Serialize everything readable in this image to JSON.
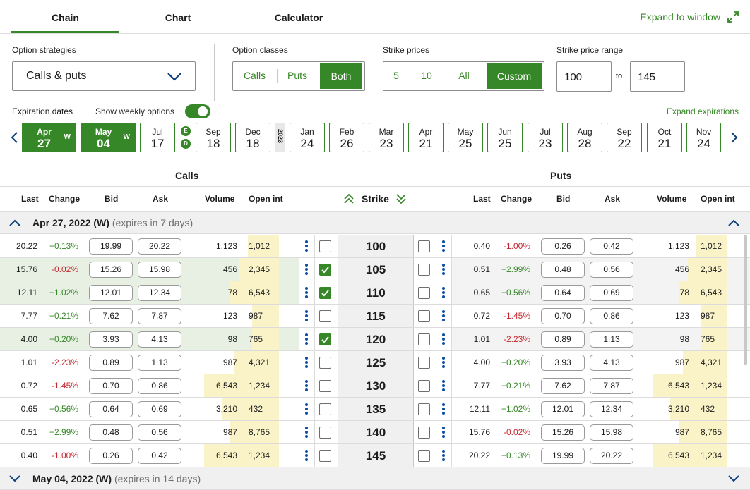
{
  "tabs": [
    "Chain",
    "Chart",
    "Calculator"
  ],
  "expand_window": "Expand to window",
  "option_strategies": {
    "label": "Option strategies",
    "value": "Calls & puts"
  },
  "option_classes": {
    "label": "Option classes",
    "options": [
      "Calls",
      "Puts",
      "Both"
    ],
    "selected": "Both"
  },
  "strike_prices": {
    "label": "Strike prices",
    "options": [
      "5",
      "10",
      "All",
      "Custom"
    ],
    "selected": "Custom"
  },
  "strike_range": {
    "label": "Strike price range",
    "from": "100",
    "to_label": "to",
    "to": "145"
  },
  "expiration_dates_label": "Expiration dates",
  "weekly": {
    "label": "Show weekly options",
    "on": true
  },
  "expand_expirations": "Expand expirations",
  "year_tag": "2023",
  "badges": [
    "E",
    "D"
  ],
  "dates": [
    {
      "m": "Apr",
      "d": "27",
      "w": "W",
      "selected": true
    },
    {
      "m": "May",
      "d": "04",
      "w": "W",
      "selected": true
    },
    {
      "m": "Jul",
      "d": "17"
    },
    {
      "m": "Sep",
      "d": "18"
    },
    {
      "m": "Dec",
      "d": "18"
    },
    {
      "m": "Jan",
      "d": "24"
    },
    {
      "m": "Feb",
      "d": "26"
    },
    {
      "m": "Mar",
      "d": "23"
    },
    {
      "m": "Apr",
      "d": "21"
    },
    {
      "m": "May",
      "d": "25"
    },
    {
      "m": "Jun",
      "d": "25"
    },
    {
      "m": "Jul",
      "d": "23"
    },
    {
      "m": "Aug",
      "d": "28"
    },
    {
      "m": "Sep",
      "d": "22"
    },
    {
      "m": "Oct",
      "d": "21"
    },
    {
      "m": "Nov",
      "d": "24"
    }
  ],
  "groups": {
    "calls": "Calls",
    "puts": "Puts"
  },
  "headers": {
    "last": "Last",
    "change": "Change",
    "bid": "Bid",
    "ask": "Ask",
    "volume": "Volume",
    "open_int": "Open int",
    "strike": "Strike"
  },
  "sections": [
    {
      "title": "Apr 27, 2022 (W)",
      "sub": "(expires in 7 days)",
      "expanded": true
    },
    {
      "title": "May 04, 2022 (W)",
      "sub": "(expires in 14 days)",
      "expanded": false
    }
  ],
  "rows": [
    {
      "strike": "100",
      "itm": false,
      "checked": false,
      "volfill": 0.35,
      "call": {
        "last": "20.22",
        "change": "+0.13%",
        "bid": "19.99",
        "ask": "20.22",
        "volume": "1,123",
        "oi": "1,012"
      },
      "put": {
        "last": "0.40",
        "change": "-1.00%",
        "bid": "0.26",
        "ask": "0.42",
        "volume": "1,123",
        "oi": "1,012"
      }
    },
    {
      "strike": "105",
      "itm": true,
      "checked": true,
      "volfill": 0.45,
      "call": {
        "last": "15.76",
        "change": "-0.02%",
        "bid": "15.26",
        "ask": "15.98",
        "volume": "456",
        "oi": "2,345"
      },
      "put": {
        "last": "0.51",
        "change": "+2.99%",
        "bid": "0.48",
        "ask": "0.56",
        "volume": "456",
        "oi": "2,345"
      }
    },
    {
      "strike": "110",
      "itm": true,
      "checked": true,
      "volfill": 0.55,
      "call": {
        "last": "12.11",
        "change": "+1.02%",
        "bid": "12.01",
        "ask": "12.34",
        "volume": "78",
        "oi": "6,543"
      },
      "put": {
        "last": "0.65",
        "change": "+0.56%",
        "bid": "0.64",
        "ask": "0.69",
        "volume": "78",
        "oi": "6,543"
      }
    },
    {
      "strike": "115",
      "itm": false,
      "checked": false,
      "volfill": 0.3,
      "call": {
        "last": "7.77",
        "change": "+0.21%",
        "bid": "7.62",
        "ask": "7.87",
        "volume": "123",
        "oi": "987"
      },
      "put": {
        "last": "0.72",
        "change": "-1.45%",
        "bid": "0.70",
        "ask": "0.86",
        "volume": "123",
        "oi": "987"
      }
    },
    {
      "strike": "120",
      "itm": true,
      "checked": true,
      "volfill": 0.3,
      "call": {
        "last": "4.00",
        "change": "+0.20%",
        "bid": "3.93",
        "ask": "4.13",
        "volume": "98",
        "oi": "765"
      },
      "put": {
        "last": "1.01",
        "change": "-2.23%",
        "bid": "0.89",
        "ask": "1.13",
        "volume": "98",
        "oi": "765"
      }
    },
    {
      "strike": "125",
      "itm": false,
      "checked": false,
      "volfill": 0.5,
      "call": {
        "last": "1.01",
        "change": "-2.23%",
        "bid": "0.89",
        "ask": "1.13",
        "volume": "987",
        "oi": "4,321"
      },
      "put": {
        "last": "4.00",
        "change": "+0.20%",
        "bid": "3.93",
        "ask": "4.13",
        "volume": "987",
        "oi": "4,321"
      }
    },
    {
      "strike": "130",
      "itm": false,
      "checked": false,
      "volfill": 0.85,
      "call": {
        "last": "0.72",
        "change": "-1.45%",
        "bid": "0.70",
        "ask": "0.86",
        "volume": "6,543",
        "oi": "1,234"
      },
      "put": {
        "last": "7.77",
        "change": "+0.21%",
        "bid": "7.62",
        "ask": "7.87",
        "volume": "6,543",
        "oi": "1,234"
      }
    },
    {
      "strike": "135",
      "itm": false,
      "checked": false,
      "volfill": 0.65,
      "call": {
        "last": "0.65",
        "change": "+0.56%",
        "bid": "0.64",
        "ask": "0.69",
        "volume": "3,210",
        "oi": "432"
      },
      "put": {
        "last": "12.11",
        "change": "+1.02%",
        "bid": "12.01",
        "ask": "12.34",
        "volume": "3,210",
        "oi": "432"
      }
    },
    {
      "strike": "140",
      "itm": false,
      "checked": false,
      "volfill": 0.55,
      "call": {
        "last": "0.51",
        "change": "+2.99%",
        "bid": "0.48",
        "ask": "0.56",
        "volume": "987",
        "oi": "8,765"
      },
      "put": {
        "last": "15.76",
        "change": "-0.02%",
        "bid": "15.26",
        "ask": "15.98",
        "volume": "987",
        "oi": "8,765"
      }
    },
    {
      "strike": "145",
      "itm": false,
      "checked": false,
      "volfill": 0.85,
      "call": {
        "last": "0.40",
        "change": "-1.00%",
        "bid": "0.26",
        "ask": "0.42",
        "volume": "6,543",
        "oi": "1,234"
      },
      "put": {
        "last": "20.22",
        "change": "+0.13%",
        "bid": "19.99",
        "ask": "20.22",
        "volume": "6,543",
        "oi": "1,234"
      }
    }
  ],
  "colors": {
    "green": "#368727",
    "red": "#c6262e",
    "volume_fill": "#faf3c8",
    "itm_row": "#e7f0e3"
  }
}
